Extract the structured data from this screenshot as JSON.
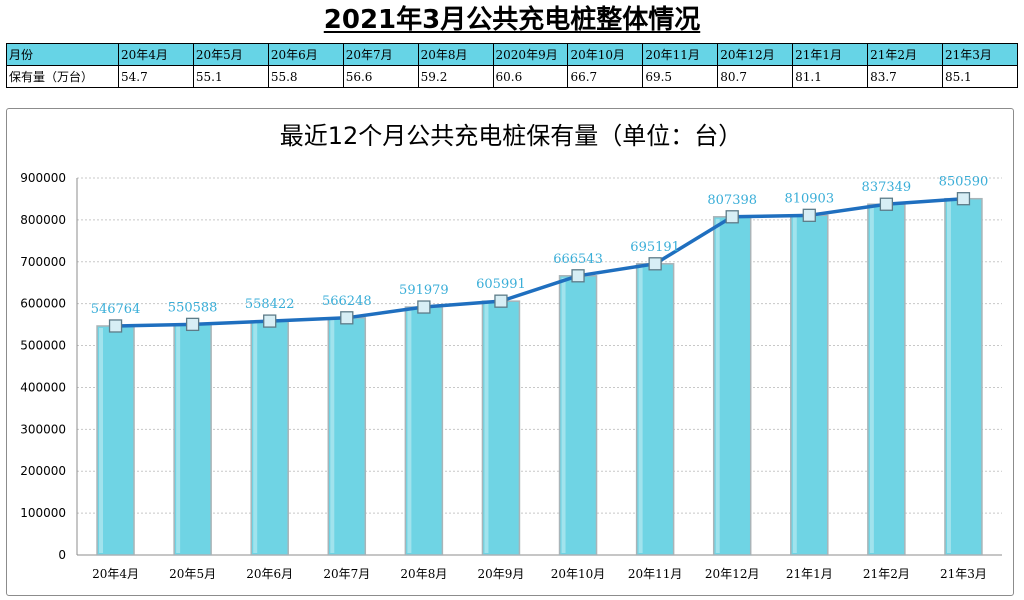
{
  "title": "2021年3月公共充电桩整体情况",
  "table": {
    "header_label": "月份",
    "row_label": "保有量（万台）",
    "months": [
      "20年4月",
      "20年5月",
      "20年6月",
      "20年7月",
      "20年8月",
      "2020年9月",
      "20年10月",
      "20年11月",
      "20年12月",
      "21年1月",
      "21年2月",
      "21年3月"
    ],
    "values": [
      "54.7",
      "55.1",
      "55.8",
      "56.6",
      "59.2",
      "60.6",
      "66.7",
      "69.5",
      "80.7",
      "81.1",
      "83.7",
      "85.1"
    ]
  },
  "colors": {
    "bar": "#6fd4e4",
    "line": "#1f6fbf",
    "label": "#3aaed8",
    "table_header": "#66d4e6"
  },
  "chart_data": {
    "type": "bar+line",
    "title": "最近12个月公共充电桩保有量（单位：台）",
    "categories": [
      "20年4月",
      "20年5月",
      "20年6月",
      "20年7月",
      "20年8月",
      "20年9月",
      "20年10月",
      "20年11月",
      "20年12月",
      "21年1月",
      "21年2月",
      "21年3月"
    ],
    "values": [
      546764,
      550588,
      558422,
      566248,
      591979,
      605991,
      666543,
      695191,
      807398,
      810903,
      837349,
      850590
    ],
    "ylim": [
      0,
      900000
    ],
    "yticks": [
      0,
      100000,
      200000,
      300000,
      400000,
      500000,
      600000,
      700000,
      800000,
      900000
    ],
    "xlabel": "",
    "ylabel": "",
    "grid": true
  }
}
